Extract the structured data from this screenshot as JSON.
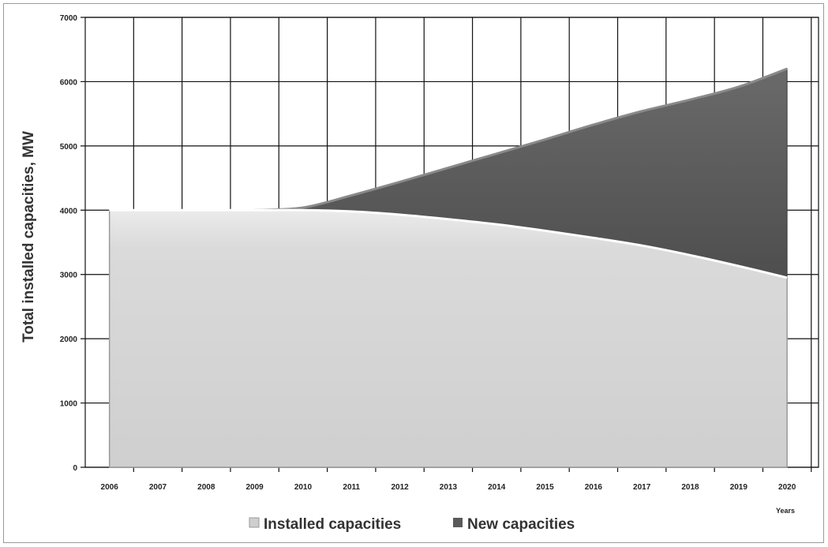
{
  "chart_data": {
    "type": "area",
    "stacked": true,
    "x": [
      2006,
      2007,
      2008,
      2009,
      2010,
      2011,
      2012,
      2013,
      2014,
      2015,
      2016,
      2017,
      2018,
      2019,
      2020
    ],
    "categories": [
      "2006",
      "2007",
      "2008",
      "2009",
      "2010",
      "2011",
      "2012",
      "2013",
      "2014",
      "2015",
      "2016",
      "2017",
      "2018",
      "2019",
      "2020"
    ],
    "series": [
      {
        "name": "Installed capacities",
        "values": [
          4000,
          4000,
          4000,
          4000,
          4000,
          3980,
          3930,
          3860,
          3780,
          3680,
          3570,
          3450,
          3300,
          3130,
          2950
        ],
        "color": "#d6d6d6"
      },
      {
        "name": "New capacities",
        "values": [
          0,
          0,
          0,
          0,
          40,
          250,
          510,
          800,
          1100,
          1420,
          1760,
          2090,
          2420,
          2790,
          3250
        ],
        "color": "#5a5a5a"
      }
    ],
    "title": "",
    "xlabel": "Years",
    "ylabel": "Total installed capacities, MW",
    "ylim": [
      0,
      7000
    ],
    "yticks": [
      "0",
      "1000",
      "2000",
      "3000",
      "4000",
      "5000",
      "6000",
      "7000"
    ],
    "grid": true,
    "legend_position": "bottom"
  }
}
